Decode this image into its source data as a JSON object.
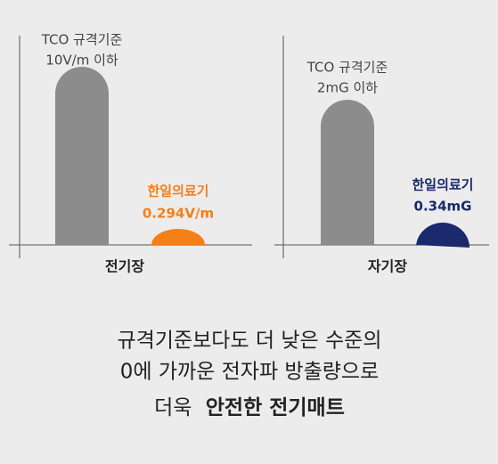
{
  "panels": [
    {
      "standard_label": "TCO 규격기준",
      "standard_value": "10V/m 이하",
      "product_label": "한일의료기",
      "product_value": "0.294V/m",
      "axis_label": "전기장"
    },
    {
      "standard_label": "TCO 규격기준",
      "standard_value": "2mG 이하",
      "product_label": "한일의료기",
      "product_value": "0.34mG",
      "axis_label": "자기장"
    }
  ],
  "caption": {
    "lines": [
      "규격기준보다도 더 낮은 수준의",
      "0에 가까운 전자파 방출량으로"
    ],
    "line3_plain": "더욱",
    "line3_bold": "안전한 전기매트"
  }
}
